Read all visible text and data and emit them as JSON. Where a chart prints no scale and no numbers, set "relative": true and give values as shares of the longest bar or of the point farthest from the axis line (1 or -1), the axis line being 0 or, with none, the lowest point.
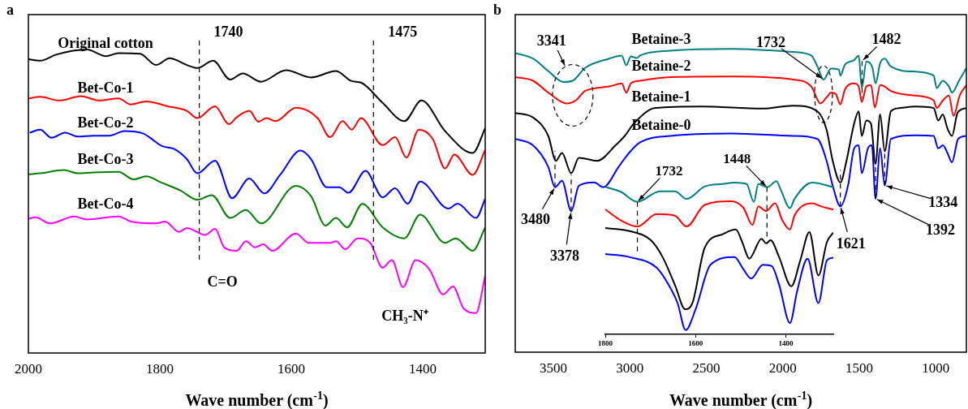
{
  "chart_data": [
    {
      "type": "line",
      "title": "a",
      "xlabel": "Wave number (cm$^{-1}$)",
      "relative": true,
      "xlim": [
        2000,
        1305
      ],
      "xticks": [
        2000,
        1800,
        1600,
        1400
      ],
      "ref_lines": [
        {
          "axis": "x",
          "value": 1740,
          "label": "1740",
          "line_style": "dashed"
        },
        {
          "axis": "x",
          "value": 1475,
          "label": "1475",
          "line_style": "dashed"
        }
      ],
      "annotations": [
        "C=O",
        "CH₃-N⁺"
      ],
      "series": [
        {
          "name": "Original cotton",
          "color": "#000000",
          "x": [
            2000,
            1982,
            1958,
            1911,
            1882,
            1863,
            1830,
            1806,
            1785,
            1759,
            1743,
            1719,
            1693,
            1674,
            1646,
            1608,
            1570,
            1532,
            1508,
            1494,
            1461,
            1428,
            1402,
            1366,
            1324,
            1305
          ],
          "values": [
            0.968,
            0.963,
            0.983,
            1.0,
            0.978,
            0.988,
            0.986,
            0.949,
            0.971,
            0.949,
            0.939,
            0.963,
            0.901,
            0.921,
            0.894,
            0.932,
            0.908,
            0.929,
            0.896,
            0.891,
            0.824,
            0.764,
            0.832,
            0.731,
            0.659,
            0.741
          ]
        },
        {
          "name": "Bet-Co-1",
          "color": "#ff0000",
          "x": [
            2000,
            1982,
            1953,
            1920,
            1892,
            1863,
            1844,
            1821,
            1788,
            1759,
            1743,
            1716,
            1695,
            1683,
            1664,
            1650,
            1638,
            1624,
            1593,
            1560,
            1541,
            1522,
            1508,
            1494,
            1461,
            1442,
            1425,
            1406,
            1385,
            1366,
            1352,
            1324,
            1305
          ],
          "values": [
            0.839,
            0.844,
            0.832,
            0.846,
            0.832,
            0.839,
            0.819,
            0.829,
            0.813,
            0.798,
            0.774,
            0.813,
            0.754,
            0.777,
            0.798,
            0.762,
            0.774,
            0.764,
            0.808,
            0.774,
            0.711,
            0.764,
            0.736,
            0.774,
            0.685,
            0.711,
            0.644,
            0.736,
            0.706,
            0.608,
            0.654,
            0.587,
            0.669
          ]
        },
        {
          "name": "Bet-Co-2",
          "color": "#0000ff",
          "x": [
            1998,
            1982,
            1965,
            1944,
            1925,
            1901,
            1877,
            1854,
            1825,
            1816,
            1797,
            1778,
            1759,
            1743,
            1716,
            1690,
            1664,
            1641,
            1617,
            1586,
            1570,
            1546,
            1527,
            1513,
            1487,
            1461,
            1442,
            1423,
            1404,
            1361,
            1347,
            1319,
            1305
          ],
          "values": [
            0.726,
            0.736,
            0.709,
            0.726,
            0.713,
            0.716,
            0.716,
            0.731,
            0.723,
            0.711,
            0.682,
            0.672,
            0.639,
            0.592,
            0.634,
            0.51,
            0.575,
            0.526,
            0.587,
            0.667,
            0.639,
            0.546,
            0.546,
            0.528,
            0.6,
            0.513,
            0.543,
            0.492,
            0.565,
            0.476,
            0.492,
            0.445,
            0.508
          ]
        },
        {
          "name": "Bet-Co-3",
          "color": "#008000",
          "x": [
            2000,
            1982,
            1946,
            1925,
            1901,
            1863,
            1840,
            1821,
            1797,
            1769,
            1743,
            1721,
            1693,
            1669,
            1646,
            1593,
            1570,
            1548,
            1532,
            1515,
            1492,
            1461,
            1428,
            1404,
            1366,
            1350,
            1324,
            1305
          ],
          "values": [
            0.589,
            0.592,
            0.603,
            0.592,
            0.595,
            0.597,
            0.572,
            0.582,
            0.561,
            0.536,
            0.505,
            0.52,
            0.445,
            0.471,
            0.427,
            0.551,
            0.517,
            0.42,
            0.445,
            0.414,
            0.491,
            0.414,
            0.378,
            0.456,
            0.363,
            0.378,
            0.337,
            0.414
          ]
        },
        {
          "name": "Bet-Co-4",
          "color": "#ff00ff",
          "x": [
            2000,
            1989,
            1967,
            1930,
            1911,
            1863,
            1844,
            1806,
            1792,
            1771,
            1759,
            1731,
            1716,
            1702,
            1683,
            1669,
            1655,
            1643,
            1629,
            1593,
            1574,
            1541,
            1532,
            1518,
            1499,
            1480,
            1461,
            1447,
            1430,
            1411,
            1390,
            1369,
            1354,
            1338,
            1319,
            1305
          ],
          "values": [
            0.443,
            0.447,
            0.427,
            0.45,
            0.44,
            0.45,
            0.433,
            0.427,
            0.433,
            0.399,
            0.412,
            0.389,
            0.409,
            0.348,
            0.337,
            0.368,
            0.348,
            0.358,
            0.337,
            0.394,
            0.363,
            0.363,
            0.368,
            0.342,
            0.378,
            0.363,
            0.281,
            0.306,
            0.217,
            0.306,
            0.276,
            0.193,
            0.219,
            0.147,
            0.132,
            0.254
          ]
        }
      ]
    },
    {
      "type": "line",
      "title": "b",
      "xlabel": "Wave number (cm$^{-1}$)",
      "relative": true,
      "xlim": [
        3750,
        800
      ],
      "xticks": [
        3500,
        3000,
        2500,
        2000,
        1500,
        1000
      ],
      "ref_lines": [
        {
          "axis": "x",
          "value": 3490,
          "line_style": "dashed"
        },
        {
          "axis": "x",
          "value": 3384,
          "line_style": "dashed"
        },
        {
          "axis": "x",
          "value": 1624,
          "line_style": "dashed"
        },
        {
          "axis": "x",
          "value": 1482,
          "line_style": "dashed"
        },
        {
          "axis": "x",
          "value": 1394,
          "line_style": "dashed"
        },
        {
          "axis": "x",
          "value": 1334,
          "line_style": "dashed"
        }
      ],
      "annotations": [
        {
          "text": "3341",
          "x": 3374,
          "y": 0.895
        },
        {
          "text": "1732",
          "x": 1734,
          "y": 0.899
        },
        {
          "text": "1482",
          "x": 1482,
          "y": 0.96
        },
        {
          "text": "3480",
          "x": 3490,
          "y": 0.544
        },
        {
          "text": "3378",
          "x": 3384,
          "y": 0.465
        },
        {
          "text": "1621",
          "x": 1624,
          "y": 0.481
        },
        {
          "text": "1392",
          "x": 1394,
          "y": 0.506
        },
        {
          "text": "1334",
          "x": 1334,
          "y": 0.55
        }
      ],
      "series": [
        {
          "name": "Betaine-3",
          "color": "#008080",
          "x": [
            3750,
            3634,
            3534,
            3434,
            3374,
            3294,
            3134,
            3054,
            3024,
            2994,
            2954,
            2934,
            2734,
            2334,
            1934,
            1814,
            1774,
            1734,
            1684,
            1634,
            1624,
            1594,
            1534,
            1504,
            1484,
            1454,
            1414,
            1394,
            1364,
            1334,
            1294,
            1134,
            1014,
            994,
            954,
            914,
            894,
            848,
            800
          ],
          "values": [
            0.986,
            0.968,
            0.927,
            0.891,
            0.895,
            0.937,
            0.968,
            0.978,
            0.946,
            0.975,
            0.97,
            0.978,
            0.994,
            1.0,
            0.99,
            0.978,
            0.942,
            0.899,
            0.935,
            0.932,
            0.912,
            0.948,
            0.963,
            0.978,
            0.871,
            0.958,
            0.937,
            0.886,
            0.953,
            0.968,
            0.942,
            0.925,
            0.912,
            0.871,
            0.895,
            0.876,
            0.856,
            0.895,
            0.937
          ]
        },
        {
          "name": "Betaine-2",
          "color": "#ff0000",
          "x": [
            3750,
            3634,
            3534,
            3414,
            3354,
            3294,
            3134,
            3054,
            3024,
            2994,
            2934,
            2734,
            2334,
            1934,
            1814,
            1754,
            1714,
            1684,
            1654,
            1624,
            1594,
            1534,
            1504,
            1484,
            1454,
            1424,
            1398,
            1364,
            1334,
            1294,
            1134,
            1014,
            994,
            954,
            914,
            884,
            844,
            800
          ],
          "values": [
            0.907,
            0.895,
            0.856,
            0.82,
            0.83,
            0.861,
            0.876,
            0.886,
            0.856,
            0.886,
            0.895,
            0.907,
            0.909,
            0.899,
            0.876,
            0.82,
            0.84,
            0.856,
            0.851,
            0.817,
            0.866,
            0.886,
            0.876,
            0.825,
            0.876,
            0.881,
            0.807,
            0.881,
            0.876,
            0.861,
            0.846,
            0.83,
            0.805,
            0.83,
            0.846,
            0.779,
            0.846,
            0.881
          ]
        },
        {
          "name": "Betaine-1",
          "color": "#000000",
          "x": [
            3750,
            3634,
            3534,
            3484,
            3444,
            3384,
            3334,
            3214,
            3094,
            3034,
            2974,
            2834,
            2534,
            2134,
            1934,
            1774,
            1714,
            1674,
            1624,
            1584,
            1534,
            1504,
            1484,
            1454,
            1424,
            1394,
            1364,
            1334,
            1294,
            1234,
            1134,
            1014,
            984,
            954,
            924,
            894,
            858,
            800
          ],
          "values": [
            0.789,
            0.774,
            0.713,
            0.631,
            0.657,
            0.59,
            0.641,
            0.631,
            0.682,
            0.713,
            0.754,
            0.805,
            0.81,
            0.803,
            0.813,
            0.794,
            0.733,
            0.631,
            0.56,
            0.631,
            0.754,
            0.794,
            0.713,
            0.764,
            0.754,
            0.621,
            0.784,
            0.662,
            0.794,
            0.805,
            0.81,
            0.805,
            0.764,
            0.784,
            0.738,
            0.713,
            0.789,
            0.805
          ]
        },
        {
          "name": "Betaine-0",
          "color": "#0000ff",
          "x": [
            3750,
            3634,
            3534,
            3490,
            3444,
            3384,
            3334,
            3234,
            3174,
            3074,
            3014,
            2934,
            2734,
            2334,
            1934,
            1774,
            1714,
            1674,
            1624,
            1574,
            1534,
            1504,
            1484,
            1444,
            1418,
            1394,
            1364,
            1334,
            1294,
            1134,
            1014,
            984,
            954,
            924,
            894,
            854,
            800
          ],
          "values": [
            0.703,
            0.682,
            0.611,
            0.544,
            0.565,
            0.465,
            0.549,
            0.56,
            0.544,
            0.611,
            0.652,
            0.692,
            0.713,
            0.721,
            0.713,
            0.703,
            0.631,
            0.549,
            0.481,
            0.549,
            0.672,
            0.682,
            0.59,
            0.672,
            0.682,
            0.506,
            0.672,
            0.55,
            0.703,
            0.715,
            0.713,
            0.672,
            0.682,
            0.657,
            0.626,
            0.703,
            0.713
          ]
        }
      ]
    },
    {
      "type": "line",
      "relative": true,
      "xlim": [
        1800,
        1295
      ],
      "xticks": [
        1800,
        1600,
        1400
      ],
      "ref_lines": [
        {
          "axis": "x",
          "value": 1729,
          "line_style": "dashed"
        },
        {
          "axis": "x",
          "value": 1442,
          "line_style": "dashed"
        }
      ],
      "annotations": [
        {
          "text": "1732",
          "x": 1729,
          "y": 0.865
        },
        {
          "text": "1448",
          "x": 1442,
          "y": 0.961
        }
      ],
      "series": [
        {
          "color": "#008080",
          "x": [
            1799,
            1766,
            1729,
            1679,
            1646,
            1620,
            1580,
            1540,
            1514,
            1487,
            1471,
            1461,
            1441,
            1421,
            1411,
            1391,
            1381,
            1342,
            1295
          ],
          "values": [
            0.961,
            0.931,
            0.865,
            0.934,
            0.934,
            0.884,
            0.965,
            0.981,
            0.991,
            0.981,
            0.865,
            0.981,
            0.961,
            1.0,
            0.941,
            0.824,
            0.884,
            0.991,
            0.961
          ]
        },
        {
          "color": "#ff0000",
          "x": [
            1800,
            1766,
            1729,
            1686,
            1646,
            1620,
            1580,
            1521,
            1494,
            1474,
            1461,
            1444,
            1424,
            1408,
            1391,
            1381,
            1342,
            1322,
            1295
          ],
          "values": [
            0.815,
            0.745,
            0.704,
            0.785,
            0.775,
            0.704,
            0.845,
            0.869,
            0.825,
            0.714,
            0.835,
            0.805,
            0.855,
            0.745,
            0.684,
            0.775,
            0.855,
            0.835,
            0.815
          ]
        },
        {
          "color": "#000000",
          "x": [
            1800,
            1746,
            1699,
            1673,
            1646,
            1623,
            1607,
            1580,
            1540,
            1511,
            1497,
            1481,
            1454,
            1444,
            1434,
            1415,
            1388,
            1368,
            1348,
            1328,
            1309,
            1295
          ],
          "values": [
            0.694,
            0.674,
            0.614,
            0.504,
            0.324,
            0.164,
            0.204,
            0.564,
            0.654,
            0.684,
            0.604,
            0.494,
            0.624,
            0.594,
            0.614,
            0.504,
            0.314,
            0.484,
            0.668,
            0.384,
            0.604,
            0.664
          ]
        },
        {
          "color": "#0000ff",
          "x": [
            1800,
            1746,
            1686,
            1660,
            1640,
            1622,
            1600,
            1567,
            1514,
            1494,
            1477,
            1451,
            1431,
            1415,
            1391,
            1375,
            1352,
            1328,
            1309,
            1295
          ],
          "values": [
            0.524,
            0.504,
            0.434,
            0.324,
            0.204,
            0.028,
            0.164,
            0.454,
            0.504,
            0.424,
            0.364,
            0.454,
            0.444,
            0.324,
            0.074,
            0.284,
            0.494,
            0.204,
            0.484,
            0.5
          ]
        }
      ]
    }
  ]
}
